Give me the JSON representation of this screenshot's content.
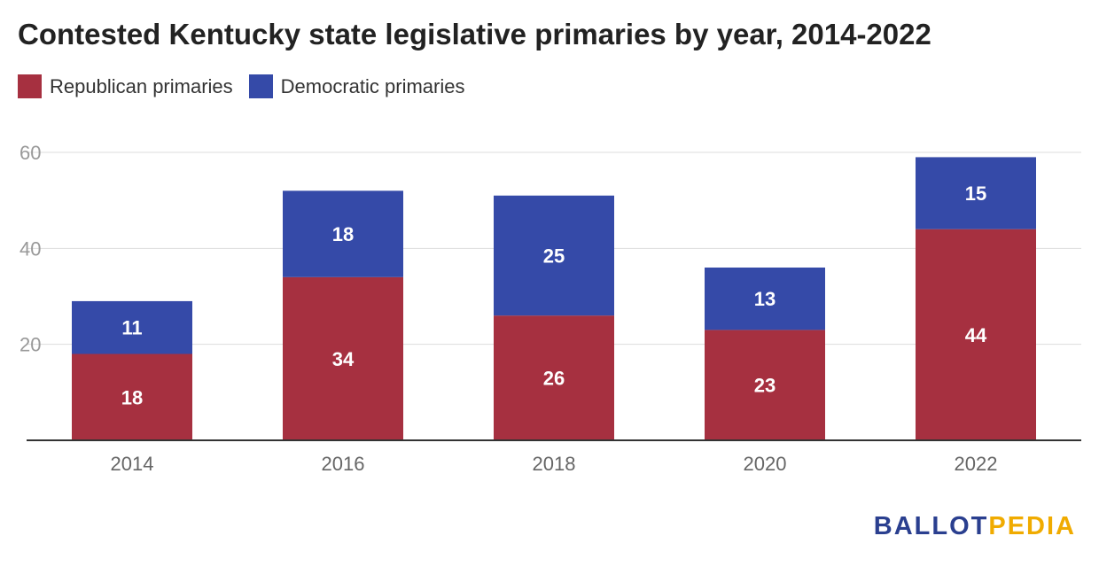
{
  "chart_data": {
    "type": "bar",
    "stacked": true,
    "title": "Contested Kentucky state legislative primaries by year, 2014-2022",
    "categories": [
      "2014",
      "2016",
      "2018",
      "2020",
      "2022"
    ],
    "series": [
      {
        "name": "Republican primaries",
        "color": "#a63040",
        "values": [
          18,
          34,
          26,
          23,
          44
        ]
      },
      {
        "name": "Democratic primaries",
        "color": "#354aa8",
        "values": [
          11,
          18,
          25,
          13,
          15
        ]
      }
    ],
    "ylim": [
      0,
      60
    ],
    "yticks": [
      20,
      40,
      60
    ],
    "xlabel": "",
    "ylabel": "",
    "grid": true,
    "legend": "top-left"
  },
  "branding": {
    "logo_part1": "BALLOT",
    "logo_part2": "PEDIA",
    "logo_color1": "#2a3f8f",
    "logo_color2": "#f0ab00"
  }
}
